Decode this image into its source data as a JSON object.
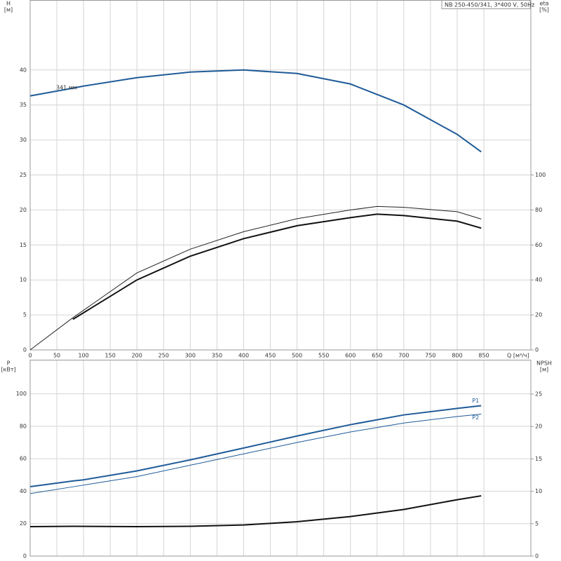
{
  "chart_data": [
    {
      "type": "line",
      "title": "NB 250-450/341, 3*400 V, 50Hz",
      "y_label": "H",
      "y_unit": "[м]",
      "y2_label": "eta",
      "y2_unit": "[%]",
      "x_label": "Q [м³/ч]",
      "annotation": "341 мм",
      "xlim": [
        0,
        938
      ],
      "xticks": [
        0,
        50,
        100,
        150,
        200,
        250,
        300,
        350,
        400,
        450,
        500,
        550,
        600,
        650,
        700,
        750,
        800,
        850
      ],
      "ylim": [
        0,
        50
      ],
      "yticks": [
        0,
        5,
        10,
        15,
        20,
        25,
        30,
        35,
        40
      ],
      "y2lim": [
        0,
        200
      ],
      "y2ticks": [
        0,
        20,
        40,
        60,
        80,
        100
      ],
      "grid": true,
      "series": [
        {
          "color": "#1f5b98",
          "width": 2,
          "x": [
            0,
            80,
            100,
            200,
            300,
            400,
            500,
            600,
            700,
            800,
            845
          ],
          "values": [
            36.3,
            37.4,
            37.7,
            38.9,
            39.7,
            40.0,
            39.5,
            38.0,
            35.0,
            30.8,
            28.3
          ]
        },
        {
          "color": "#222222",
          "width": 1,
          "axis": "y2",
          "x": [
            0,
            80,
            200,
            300,
            400,
            500,
            600,
            650,
            700,
            800,
            845
          ],
          "values": [
            0,
            18.4,
            44,
            57.6,
            67.6,
            75,
            80,
            82,
            81.5,
            79,
            74.8
          ]
        },
        {
          "color": "#111111",
          "width": 2,
          "axis": "y2",
          "x": [
            80,
            200,
            300,
            400,
            500,
            600,
            650,
            700,
            800,
            845
          ],
          "values": [
            17.5,
            40,
            53.6,
            63.6,
            71,
            75.6,
            77.6,
            76.8,
            73.6,
            69.6
          ]
        }
      ]
    },
    {
      "type": "line",
      "y_label": "P",
      "y_unit": "[кВт]",
      "y2_label": "NPSH",
      "y2_unit": "[м]",
      "xlim": [
        0,
        938
      ],
      "xticks": [
        0,
        50,
        100,
        150,
        200,
        250,
        300,
        350,
        400,
        450,
        500,
        550,
        600,
        650,
        700,
        750,
        800,
        850
      ],
      "show_xtick_labels": false,
      "ylim": [
        0,
        121
      ],
      "yticks": [
        0,
        20,
        40,
        60,
        80,
        100
      ],
      "y2lim": [
        0,
        30.3
      ],
      "y2ticks": [
        0,
        5,
        10,
        15,
        20,
        25
      ],
      "grid": true,
      "series": [
        {
          "name": "P1",
          "color": "#1f5b98",
          "width": 2,
          "x": [
            0,
            80,
            100,
            200,
            300,
            400,
            500,
            600,
            700,
            800,
            845
          ],
          "values": [
            42.8,
            46.3,
            47,
            52.5,
            59.3,
            66.6,
            74,
            81,
            87,
            91,
            92.7
          ]
        },
        {
          "name": "P2",
          "color": "#1f5b98",
          "width": 1,
          "x": [
            0,
            80,
            200,
            300,
            400,
            500,
            600,
            700,
            800,
            845
          ],
          "values": [
            38.5,
            42.7,
            49,
            56,
            63,
            70,
            76.5,
            82,
            86,
            87.5
          ]
        },
        {
          "color": "#111111",
          "width": 2,
          "axis": "y2",
          "x": [
            0,
            80,
            200,
            300,
            400,
            500,
            600,
            700,
            800,
            845
          ],
          "values": [
            4.55,
            4.6,
            4.55,
            4.6,
            4.8,
            5.3,
            6.1,
            7.2,
            8.7,
            9.3
          ]
        }
      ]
    }
  ]
}
